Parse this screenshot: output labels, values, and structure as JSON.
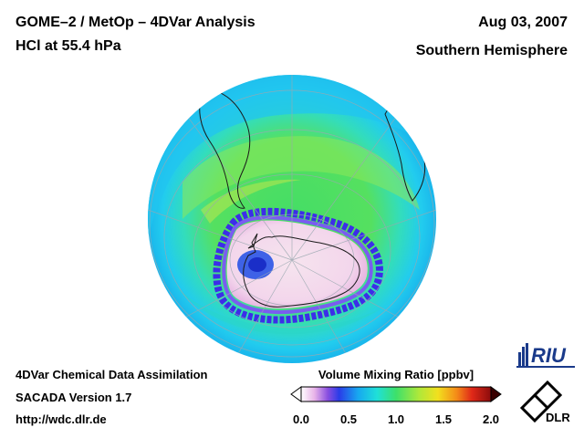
{
  "header": {
    "title_line1": "GOME–2 / MetOp – 4DVar Analysis",
    "title_line2": "HCl at 55.4 hPa",
    "date": "Aug 03, 2007",
    "region": "Southern Hemisphere"
  },
  "footer": {
    "line1": "4DVar Chemical Data Assimilation",
    "line2": "SACADA Version 1.7",
    "line3": "http://wdc.dlr.de"
  },
  "colorbar": {
    "title": "Volume Mixing Ratio [ppbv]",
    "ticks": [
      "0.0",
      "0.5",
      "1.0",
      "1.5",
      "2.0"
    ],
    "min": 0.0,
    "max": 2.0
  },
  "logos": {
    "riu": "RIU",
    "dlr": "DLR"
  },
  "map": {
    "projection": "orthographic",
    "hemisphere": "south"
  }
}
